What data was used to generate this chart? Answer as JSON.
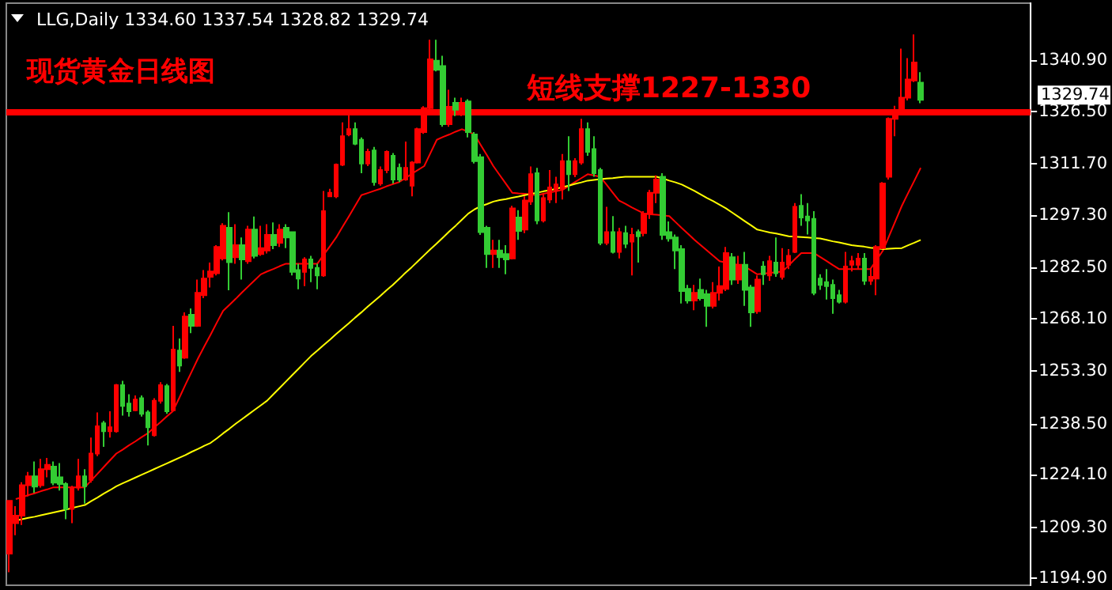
{
  "chart_data": {
    "type": "candlestick",
    "title": "现货黄金日线图",
    "subtitle": "LLG,Daily 1334.60 1337.54 1328.82 1329.74",
    "categories": [
      null,
      null,
      null,
      null,
      null,
      null,
      null,
      null,
      null,
      null,
      null,
      null,
      null,
      null,
      null,
      null,
      null,
      null,
      null,
      null,
      null,
      null,
      null,
      null,
      null,
      null,
      null,
      null,
      null,
      null,
      null,
      null,
      null,
      null,
      null,
      null,
      null,
      null,
      null,
      null,
      null,
      null,
      null,
      null,
      null,
      null,
      null,
      null,
      null,
      null,
      null,
      null,
      null,
      null,
      null,
      null,
      null,
      null,
      null,
      null,
      null,
      null,
      null,
      null,
      null,
      null,
      null,
      null,
      null,
      null,
      null,
      null,
      null,
      null,
      null,
      null,
      null,
      null,
      null,
      null,
      null,
      null,
      null,
      null,
      null,
      null,
      null,
      null,
      null,
      null,
      null,
      null,
      null,
      null,
      null,
      null,
      null,
      null,
      null,
      null,
      null,
      null,
      null,
      null,
      null,
      null,
      null,
      null,
      null,
      null,
      null,
      null,
      null,
      null,
      null,
      null,
      null,
      null,
      null,
      null,
      null,
      null,
      null,
      null,
      null,
      null,
      null,
      null,
      null,
      null,
      null,
      null,
      null,
      null,
      null,
      null,
      null,
      null,
      null,
      null,
      null,
      null,
      null,
      null,
      null,
      null
    ],
    "ohlc": [
      [
        1201.9,
        1216.8,
        1196.7,
        1216.8
      ],
      [
        1210.5,
        1215.3,
        1207.1,
        1212.6
      ],
      [
        1212.6,
        1222,
        1210,
        1221.2
      ],
      [
        1221.2,
        1224.9,
        1218,
        1223.7
      ],
      [
        1223.7,
        1227.9,
        1219,
        1220.8
      ],
      [
        1221.2,
        1228.6,
        1220.5,
        1225.7
      ],
      [
        1225.7,
        1228.9,
        1223.4,
        1226.9
      ],
      [
        1226.4,
        1227.9,
        1221.2,
        1221.9
      ],
      [
        1223.4,
        1227.4,
        1219.7,
        1221.5
      ],
      [
        1221.5,
        1222,
        1211.6,
        1214.5
      ],
      [
        1214.5,
        1221,
        1210.5,
        1220.5
      ],
      [
        1220.5,
        1228.6,
        1219.7,
        1223.7
      ],
      [
        1223.7,
        1225.7,
        1216,
        1220.9
      ],
      [
        1222.7,
        1234.6,
        1221.9,
        1230.1
      ],
      [
        1230.1,
        1241.7,
        1229.4,
        1237.8
      ],
      [
        1238.6,
        1239.3,
        1232,
        1236.4
      ],
      [
        1236.4,
        1242,
        1234.6,
        1237.5
      ],
      [
        1236.4,
        1249.7,
        1236,
        1249.4
      ],
      [
        1249.4,
        1250.6,
        1240.8,
        1243.5
      ],
      [
        1244.2,
        1246.8,
        1240.5,
        1242
      ],
      [
        1242.3,
        1246.5,
        1242,
        1245.3
      ],
      [
        1245.7,
        1246.5,
        1240.5,
        1241.3
      ],
      [
        1241.7,
        1242.3,
        1232.4,
        1237.5
      ],
      [
        1235.3,
        1245.7,
        1234.9,
        1245
      ],
      [
        1245,
        1250.2,
        1244.2,
        1249.4
      ],
      [
        1249.1,
        1249.7,
        1241.3,
        1242
      ],
      [
        1242.3,
        1266.1,
        1242,
        1259.4
      ],
      [
        1259.1,
        1262.5,
        1253.1,
        1254.9
      ],
      [
        1257.1,
        1269.9,
        1256.8,
        1268.7
      ],
      [
        1269.2,
        1271,
        1264,
        1266.1
      ],
      [
        1266.1,
        1279.1,
        1265.8,
        1275.4
      ],
      [
        1274.7,
        1281.8,
        1273.9,
        1279.4
      ],
      [
        1279.9,
        1283.9,
        1276.9,
        1281.4
      ],
      [
        1280.9,
        1288.8,
        1280.3,
        1288.3
      ],
      [
        1285.1,
        1295,
        1284.5,
        1294.3
      ],
      [
        1293.7,
        1298.1,
        1276.1,
        1284
      ],
      [
        1285.4,
        1294.7,
        1283.6,
        1288.8
      ],
      [
        1288.8,
        1291,
        1279.1,
        1284.8
      ],
      [
        1284.3,
        1294.3,
        1283.6,
        1293.2
      ],
      [
        1293.2,
        1296.9,
        1285.1,
        1285.8
      ],
      [
        1286.3,
        1294.3,
        1285.8,
        1288
      ],
      [
        1287.3,
        1294.7,
        1286.5,
        1291.7
      ],
      [
        1291.7,
        1295.2,
        1287.7,
        1288.8
      ],
      [
        1289.5,
        1294.7,
        1288.3,
        1293.2
      ],
      [
        1293.7,
        1294.7,
        1288,
        1291
      ],
      [
        1292.5,
        1292.5,
        1280.3,
        1281.3
      ],
      [
        1281.8,
        1283.6,
        1276.4,
        1279.4
      ],
      [
        1281.3,
        1285.4,
        1277.3,
        1284.8
      ],
      [
        1284.8,
        1285.8,
        1278.4,
        1282.4
      ],
      [
        1282.4,
        1283.6,
        1276.4,
        1280.3
      ],
      [
        1280.3,
        1304.1,
        1279.9,
        1298.4
      ],
      [
        1302.6,
        1304.7,
        1302.6,
        1303.6
      ],
      [
        1302.6,
        1311.8,
        1302.1,
        1311.5
      ],
      [
        1311.5,
        1323.4,
        1311.1,
        1319.5
      ],
      [
        1320,
        1325.5,
        1319.5,
        1321.5
      ],
      [
        1321.5,
        1323.4,
        1317,
        1317.4
      ],
      [
        1318.5,
        1319.2,
        1309.1,
        1311.8
      ],
      [
        1311.8,
        1316,
        1311.1,
        1315.1
      ],
      [
        1315.5,
        1316.5,
        1305.6,
        1306.6
      ],
      [
        1306.2,
        1311,
        1305.6,
        1310
      ],
      [
        1310,
        1315.5,
        1309.1,
        1315.1
      ],
      [
        1314,
        1314.8,
        1306.2,
        1307.3
      ],
      [
        1310.6,
        1311.8,
        1306.6,
        1307.3
      ],
      [
        1307.3,
        1318,
        1307,
        1310.6
      ],
      [
        1305.6,
        1312.5,
        1302.6,
        1312.1
      ],
      [
        1312.1,
        1321.9,
        1311.8,
        1321.5
      ],
      [
        1320.7,
        1328,
        1320.2,
        1327.4
      ],
      [
        1327.4,
        1346.7,
        1326.6,
        1341.2
      ],
      [
        1340.8,
        1346.7,
        1337.8,
        1338.2
      ],
      [
        1339.3,
        1342.2,
        1322.2,
        1322.9
      ],
      [
        1322.9,
        1332.6,
        1322.2,
        1327.8
      ],
      [
        1328.9,
        1330.4,
        1325.2,
        1327
      ],
      [
        1327,
        1330.4,
        1325.2,
        1328.9
      ],
      [
        1329.3,
        1329.9,
        1319.2,
        1320.7
      ],
      [
        1320,
        1320.7,
        1311.8,
        1312.5
      ],
      [
        1313.6,
        1314.5,
        1291.7,
        1292.5
      ],
      [
        1293.7,
        1294.3,
        1282.4,
        1286.3
      ],
      [
        1286.3,
        1290.3,
        1282.4,
        1287.3
      ],
      [
        1287.3,
        1290.3,
        1282.4,
        1285.4
      ],
      [
        1286.3,
        1288.8,
        1280.6,
        1284.8
      ],
      [
        1285.1,
        1299.9,
        1284.8,
        1299.2
      ],
      [
        1296.6,
        1298.7,
        1290.3,
        1292.8
      ],
      [
        1293.2,
        1302.6,
        1292.2,
        1301.4
      ],
      [
        1301.1,
        1311,
        1300.2,
        1308.8
      ],
      [
        1309.1,
        1310.6,
        1294.7,
        1295.8
      ],
      [
        1295.8,
        1303.6,
        1295.2,
        1302.1
      ],
      [
        1301.7,
        1310,
        1300.7,
        1305.1
      ],
      [
        1304.4,
        1308.1,
        1300.7,
        1305.9
      ],
      [
        1304.7,
        1314.5,
        1301.7,
        1312.5
      ],
      [
        1312.5,
        1319.5,
        1304.1,
        1308.8
      ],
      [
        1308.8,
        1313.3,
        1308,
        1312.5
      ],
      [
        1312.1,
        1324.4,
        1311.5,
        1321.5
      ],
      [
        1321.5,
        1323.4,
        1314,
        1315.1
      ],
      [
        1315.9,
        1319.5,
        1308.1,
        1309.1
      ],
      [
        1310,
        1310.6,
        1288.8,
        1289.5
      ],
      [
        1289.5,
        1299.6,
        1288.8,
        1292.5
      ],
      [
        1292.5,
        1297,
        1286.5,
        1286.9
      ],
      [
        1286.9,
        1293.7,
        1285.1,
        1292.5
      ],
      [
        1292.2,
        1294.3,
        1288,
        1289.2
      ],
      [
        1289.8,
        1293.7,
        1280.3,
        1291.7
      ],
      [
        1292.5,
        1293.2,
        1283.9,
        1291.3
      ],
      [
        1292.2,
        1298.4,
        1291.3,
        1297.7
      ],
      [
        1297.7,
        1304.4,
        1296.2,
        1303.6
      ],
      [
        1303.6,
        1308.5,
        1300.7,
        1307.3
      ],
      [
        1308.1,
        1309.1,
        1290.3,
        1291.7
      ],
      [
        1292.5,
        1295.5,
        1289.8,
        1290.7
      ],
      [
        1291,
        1291.8,
        1282.1,
        1287.3
      ],
      [
        1287.7,
        1288.8,
        1272.4,
        1275.9
      ],
      [
        1276.5,
        1277.6,
        1272.4,
        1273.2
      ],
      [
        1273.2,
        1277.6,
        1270.5,
        1275.4
      ],
      [
        1276.2,
        1279.4,
        1273.2,
        1273.9
      ],
      [
        1275,
        1276.2,
        1265.8,
        1271.7
      ],
      [
        1271.7,
        1278.4,
        1271,
        1275.4
      ],
      [
        1275.4,
        1282.8,
        1273.2,
        1277.3
      ],
      [
        1276.5,
        1288.3,
        1275.9,
        1286.6
      ],
      [
        1285.4,
        1286.6,
        1277.6,
        1279.1
      ],
      [
        1279.1,
        1285.8,
        1277.9,
        1283.3
      ],
      [
        1283.3,
        1286.9,
        1271.7,
        1276.2
      ],
      [
        1276.9,
        1277.6,
        1265.8,
        1269.9
      ],
      [
        1270.2,
        1280.3,
        1269.5,
        1279.1
      ],
      [
        1282.8,
        1284.3,
        1277.6,
        1280.6
      ],
      [
        1280.3,
        1285.8,
        1278.8,
        1284.3
      ],
      [
        1283.9,
        1291,
        1279.9,
        1280.9
      ],
      [
        1279.9,
        1288,
        1279.1,
        1283.9
      ],
      [
        1283.3,
        1287.7,
        1282.1,
        1285.8
      ],
      [
        1286.9,
        1300.7,
        1286.6,
        1299.6
      ],
      [
        1299.9,
        1303.2,
        1294.3,
        1296.6
      ],
      [
        1296.9,
        1300.7,
        1291.8,
        1295.8
      ],
      [
        1296.2,
        1298.4,
        1274.7,
        1275.4
      ],
      [
        1279.4,
        1280.6,
        1276.2,
        1277.6
      ],
      [
        1278.4,
        1282.1,
        1273.5,
        1277.3
      ],
      [
        1277.6,
        1279.1,
        1269.5,
        1273.9
      ],
      [
        1274.7,
        1276.2,
        1272.4,
        1272.9
      ],
      [
        1272.9,
        1286.9,
        1272.4,
        1282.8
      ],
      [
        1283.3,
        1285.8,
        1281.4,
        1284.3
      ],
      [
        1283.3,
        1286.6,
        1282.1,
        1285
      ],
      [
        1285,
        1286.6,
        1277.6,
        1278.8
      ],
      [
        1278.8,
        1282.1,
        1277.6,
        1279.9
      ],
      [
        1279.4,
        1288.8,
        1274.7,
        1288.3
      ],
      [
        1288,
        1306.6,
        1287.7,
        1306.2
      ],
      [
        1308.1,
        1324.8,
        1307.3,
        1324.4
      ],
      [
        1324.4,
        1328.1,
        1319.5,
        1326.3
      ],
      [
        1326.3,
        1344.2,
        1325.9,
        1330.4
      ],
      [
        1330.4,
        1341.5,
        1329.6,
        1335.5
      ],
      [
        1335.2,
        1348.2,
        1334.8,
        1340.3
      ],
      [
        1334.6,
        1337.54,
        1328.82,
        1329.74
      ]
    ],
    "colors": [
      "#ff0000",
      "#ff0000",
      "#ff0000",
      "#ff0000",
      "#33cc33",
      "#ff0000",
      "#ff0000",
      "#33cc33",
      "#33cc33",
      "#33cc33",
      "#ff0000",
      "#ff0000",
      "#33cc33",
      "#ff0000",
      "#ff0000",
      "#33cc33",
      "#ff0000",
      "#ff0000",
      "#33cc33",
      "#33cc33",
      "#ff0000",
      "#33cc33",
      "#33cc33",
      "#ff0000",
      "#ff0000",
      "#33cc33",
      "#ff0000",
      "#33cc33",
      "#ff0000",
      "#33cc33",
      "#ff0000",
      "#ff0000",
      "#ff0000",
      "#ff0000",
      "#ff0000",
      "#33cc33",
      "#ff0000",
      "#33cc33",
      "#ff0000",
      "#33cc33",
      "#ff0000",
      "#ff0000",
      "#33cc33",
      "#ff0000",
      "#33cc33",
      "#33cc33",
      "#33cc33",
      "#ff0000",
      "#33cc33",
      "#33cc33",
      "#ff0000",
      "#ff0000",
      "#ff0000",
      "#ff0000",
      "#ff0000",
      "#33cc33",
      "#33cc33",
      "#ff0000",
      "#33cc33",
      "#ff0000",
      "#ff0000",
      "#33cc33",
      "#33cc33",
      "#ff0000",
      "#ff0000",
      "#ff0000",
      "#ff0000",
      "#ff0000",
      "#33cc33",
      "#33cc33",
      "#ff0000",
      "#33cc33",
      "#ff0000",
      "#33cc33",
      "#33cc33",
      "#33cc33",
      "#33cc33",
      "#ff0000",
      "#33cc33",
      "#33cc33",
      "#ff0000",
      "#33cc33",
      "#ff0000",
      "#ff0000",
      "#33cc33",
      "#ff0000",
      "#ff0000",
      "#ff0000",
      "#ff0000",
      "#33cc33",
      "#ff0000",
      "#ff0000",
      "#33cc33",
      "#33cc33",
      "#33cc33",
      "#ff0000",
      "#33cc33",
      "#ff0000",
      "#33cc33",
      "#ff0000",
      "#33cc33",
      "#ff0000",
      "#ff0000",
      "#ff0000",
      "#33cc33",
      "#33cc33",
      "#33cc33",
      "#33cc33",
      "#33cc33",
      "#ff0000",
      "#33cc33",
      "#33cc33",
      "#ff0000",
      "#ff0000",
      "#ff0000",
      "#33cc33",
      "#ff0000",
      "#33cc33",
      "#33cc33",
      "#ff0000",
      "#33cc33",
      "#ff0000",
      "#33cc33",
      "#ff0000",
      "#ff0000",
      "#ff0000",
      "#33cc33",
      "#33cc33",
      "#33cc33",
      "#33cc33",
      "#33cc33",
      "#33cc33",
      "#33cc33",
      "#ff0000",
      "#ff0000",
      "#ff0000",
      "#33cc33",
      "#ff0000",
      "#ff0000",
      "#ff0000",
      "#ff0000",
      "#ff0000",
      "#ff0000",
      "#ff0000",
      "#ff0000",
      "#33cc33"
    ],
    "series": [
      {
        "type": "line",
        "color": "#ff0000",
        "values": [
          null,
          1217.3,
          1217.8,
          1218.4,
          1218.9,
          1219.5,
          1220.0,
          1220.6,
          1220.6,
          1220.6,
          1220.6,
          1220.6,
          1220.6,
          1222.5,
          1224.4,
          1226.3,
          1228.2,
          1230.1,
          1231.2,
          1232.4,
          1233.5,
          1234.7,
          1235.8,
          1237.4,
          1238.9,
          1240.5,
          1242.0,
          1245.7,
          1249.5,
          1253.2,
          1256.9,
          1260.3,
          1263.6,
          1267.0,
          1270.3,
          1272.0,
          1273.7,
          1275.5,
          1277.2,
          1278.9,
          1280.6,
          1281.4,
          1282.1,
          1282.9,
          1283.6,
          1283.6,
          1283.6,
          1283.6,
          1283.6,
          1283.6,
          1286.1,
          1288.5,
          1291.0,
          1294.0,
          1296.9,
          1299.9,
          1302.9,
          1303.5,
          1304.1,
          1304.7,
          1305.4,
          1306.0,
          1306.6,
          1307.7,
          1308.9,
          1310.0,
          1311.1,
          1314.8,
          1318.5,
          1319.3,
          1320.0,
          1320.8,
          1321.5,
          1320.8,
          1320.0,
          1317.0,
          1314.1,
          1311.1,
          1308.6,
          1306.1,
          1303.6,
          1303.4,
          1303.3,
          1303.1,
          1302.9,
          1303.3,
          1303.7,
          1304.0,
          1304.4,
          1305.5,
          1306.6,
          1307.7,
          1308.8,
          1308.5,
          1308.1,
          1305.9,
          1303.6,
          1301.4,
          1300.5,
          1299.5,
          1298.6,
          1297.7,
          1297.5,
          1297.4,
          1297.2,
          1297.0,
          1295.3,
          1293.6,
          1292.0,
          1290.3,
          1288.8,
          1287.3,
          1285.8,
          1284.3,
          1283.9,
          1283.6,
          1283.2,
          1282.8,
          1281.7,
          1280.6,
          1280.8,
          1281.0,
          1281.2,
          1281.4,
          1283.1,
          1284.9,
          1286.6,
          1286.6,
          1286.6,
          1285.5,
          1284.4,
          1283.2,
          1282.1,
          1282.1,
          1282.1,
          1282.1,
          1282.1,
          1282.1,
          1284.7,
          1287.3,
          1291.5,
          1295.7,
          1299.9,
          1303.5,
          1307.0,
          1310.6
        ]
      },
      {
        "type": "line",
        "color": "#ffff00",
        "values": [
          null,
          1211.2,
          1211.6,
          1212.0,
          1212.3,
          1212.7,
          1213.1,
          1213.5,
          1213.9,
          1214.3,
          1214.8,
          1215.2,
          1215.6,
          1216.7,
          1217.7,
          1218.8,
          1219.8,
          1220.9,
          1221.7,
          1222.5,
          1223.3,
          1224.1,
          1224.9,
          1225.7,
          1226.5,
          1227.3,
          1228.1,
          1228.9,
          1229.7,
          1230.6,
          1231.4,
          1232.3,
          1233.1,
          1234.4,
          1235.8,
          1237.1,
          1238.5,
          1239.8,
          1241.1,
          1242.4,
          1243.7,
          1245.0,
          1246.8,
          1248.6,
          1250.4,
          1252.2,
          1254.0,
          1255.8,
          1257.6,
          1259.1,
          1260.7,
          1262.2,
          1263.8,
          1265.3,
          1266.8,
          1268.4,
          1269.9,
          1271.5,
          1273.0,
          1274.5,
          1276.1,
          1277.6,
          1279.3,
          1281.0,
          1282.6,
          1284.3,
          1286.0,
          1287.7,
          1289.3,
          1291.0,
          1292.7,
          1294.3,
          1296.0,
          1297.7,
          1298.9,
          1299.8,
          1300.4,
          1301.1,
          1301.5,
          1301.8,
          1302.2,
          1302.5,
          1302.9,
          1303.3,
          1303.6,
          1304.0,
          1304.3,
          1304.7,
          1305.2,
          1305.6,
          1306.1,
          1306.5,
          1307.0,
          1307.2,
          1307.4,
          1307.6,
          1307.7,
          1307.9,
          1308.1,
          1308.1,
          1308.1,
          1308.1,
          1308.1,
          1308.1,
          1307.6,
          1307.0,
          1306.5,
          1305.9,
          1305.0,
          1304.1,
          1303.1,
          1302.1,
          1301.2,
          1300.2,
          1299.2,
          1298.0,
          1296.8,
          1295.6,
          1294.4,
          1293.2,
          1292.8,
          1292.4,
          1292.1,
          1291.7,
          1291.3,
          1291.2,
          1291.1,
          1291.0,
          1290.8,
          1290.7,
          1290.3,
          1289.9,
          1289.6,
          1289.2,
          1288.8,
          1288.6,
          1288.4,
          1288.1,
          1287.9,
          1287.7,
          1287.8,
          1287.9,
          1288.0,
          1288.8,
          1289.5,
          1290.3
        ]
      }
    ],
    "ylim": [
      1193,
      1357
    ],
    "yticks": [
      {
        "value": 1194.9,
        "label": "1194.90"
      },
      {
        "value": 1209.3,
        "label": "1209.30"
      },
      {
        "value": 1224.1,
        "label": "1224.10"
      },
      {
        "value": 1238.5,
        "label": "1238.50"
      },
      {
        "value": 1253.3,
        "label": "1253.30"
      },
      {
        "value": 1268.1,
        "label": "1268.10"
      },
      {
        "value": 1282.5,
        "label": "1282.50"
      },
      {
        "value": 1297.3,
        "label": "1297.30"
      },
      {
        "value": 1311.7,
        "label": "1311.70"
      },
      {
        "value": 1326.5,
        "label": "1326.50"
      },
      {
        "value": 1340.9,
        "label": "1340.90"
      }
    ],
    "tick_labels": "y",
    "grid": false,
    "line_style": "solid",
    "ref_lines": [
      {
        "axis": "y",
        "value": 1326.2,
        "label": "短线支撑1227-1330",
        "color": "#ff0000"
      }
    ],
    "annotations": [
      "1329.74"
    ]
  }
}
